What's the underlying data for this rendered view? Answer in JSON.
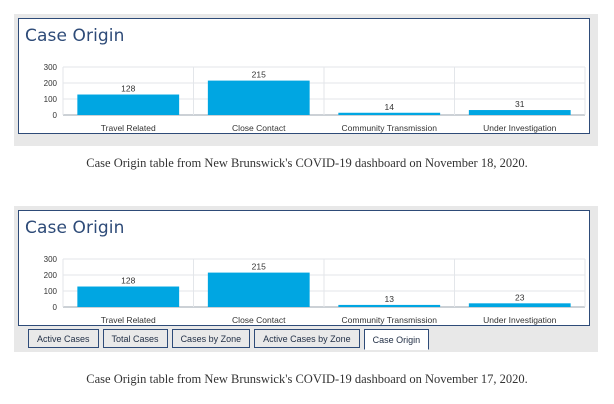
{
  "panels": [
    {
      "caption": "Case Origin table from New Brunswick's COVID-19 dashboard on November 18, 2020.",
      "tabs": []
    },
    {
      "caption": "Case Origin table from New Brunswick's COVID-19 dashboard on November 17, 2020.",
      "tabs": [
        {
          "label": "Active Cases",
          "active": false
        },
        {
          "label": "Total Cases",
          "active": false
        },
        {
          "label": "Cases by Zone",
          "active": false
        },
        {
          "label": "Active Cases by Zone",
          "active": false
        },
        {
          "label": "Case Origin",
          "active": true
        }
      ]
    }
  ],
  "chart_data": [
    {
      "type": "bar",
      "title": "Case Origin",
      "categories": [
        "Travel Related",
        "Close Contact",
        "Community Transmission",
        "Under Investigation"
      ],
      "values": [
        128,
        215,
        14,
        31
      ],
      "ylim": [
        0,
        300
      ],
      "yticks": [
        0,
        100,
        200,
        300
      ],
      "bar_color": "#00a6e2",
      "grid": true,
      "data_labels": true
    },
    {
      "type": "bar",
      "title": "Case Origin",
      "categories": [
        "Travel Related",
        "Close Contact",
        "Community Transmission",
        "Under Investigation"
      ],
      "values": [
        128,
        215,
        13,
        23
      ],
      "ylim": [
        0,
        300
      ],
      "yticks": [
        0,
        100,
        200,
        300
      ],
      "bar_color": "#00a6e2",
      "grid": true,
      "data_labels": true
    }
  ]
}
